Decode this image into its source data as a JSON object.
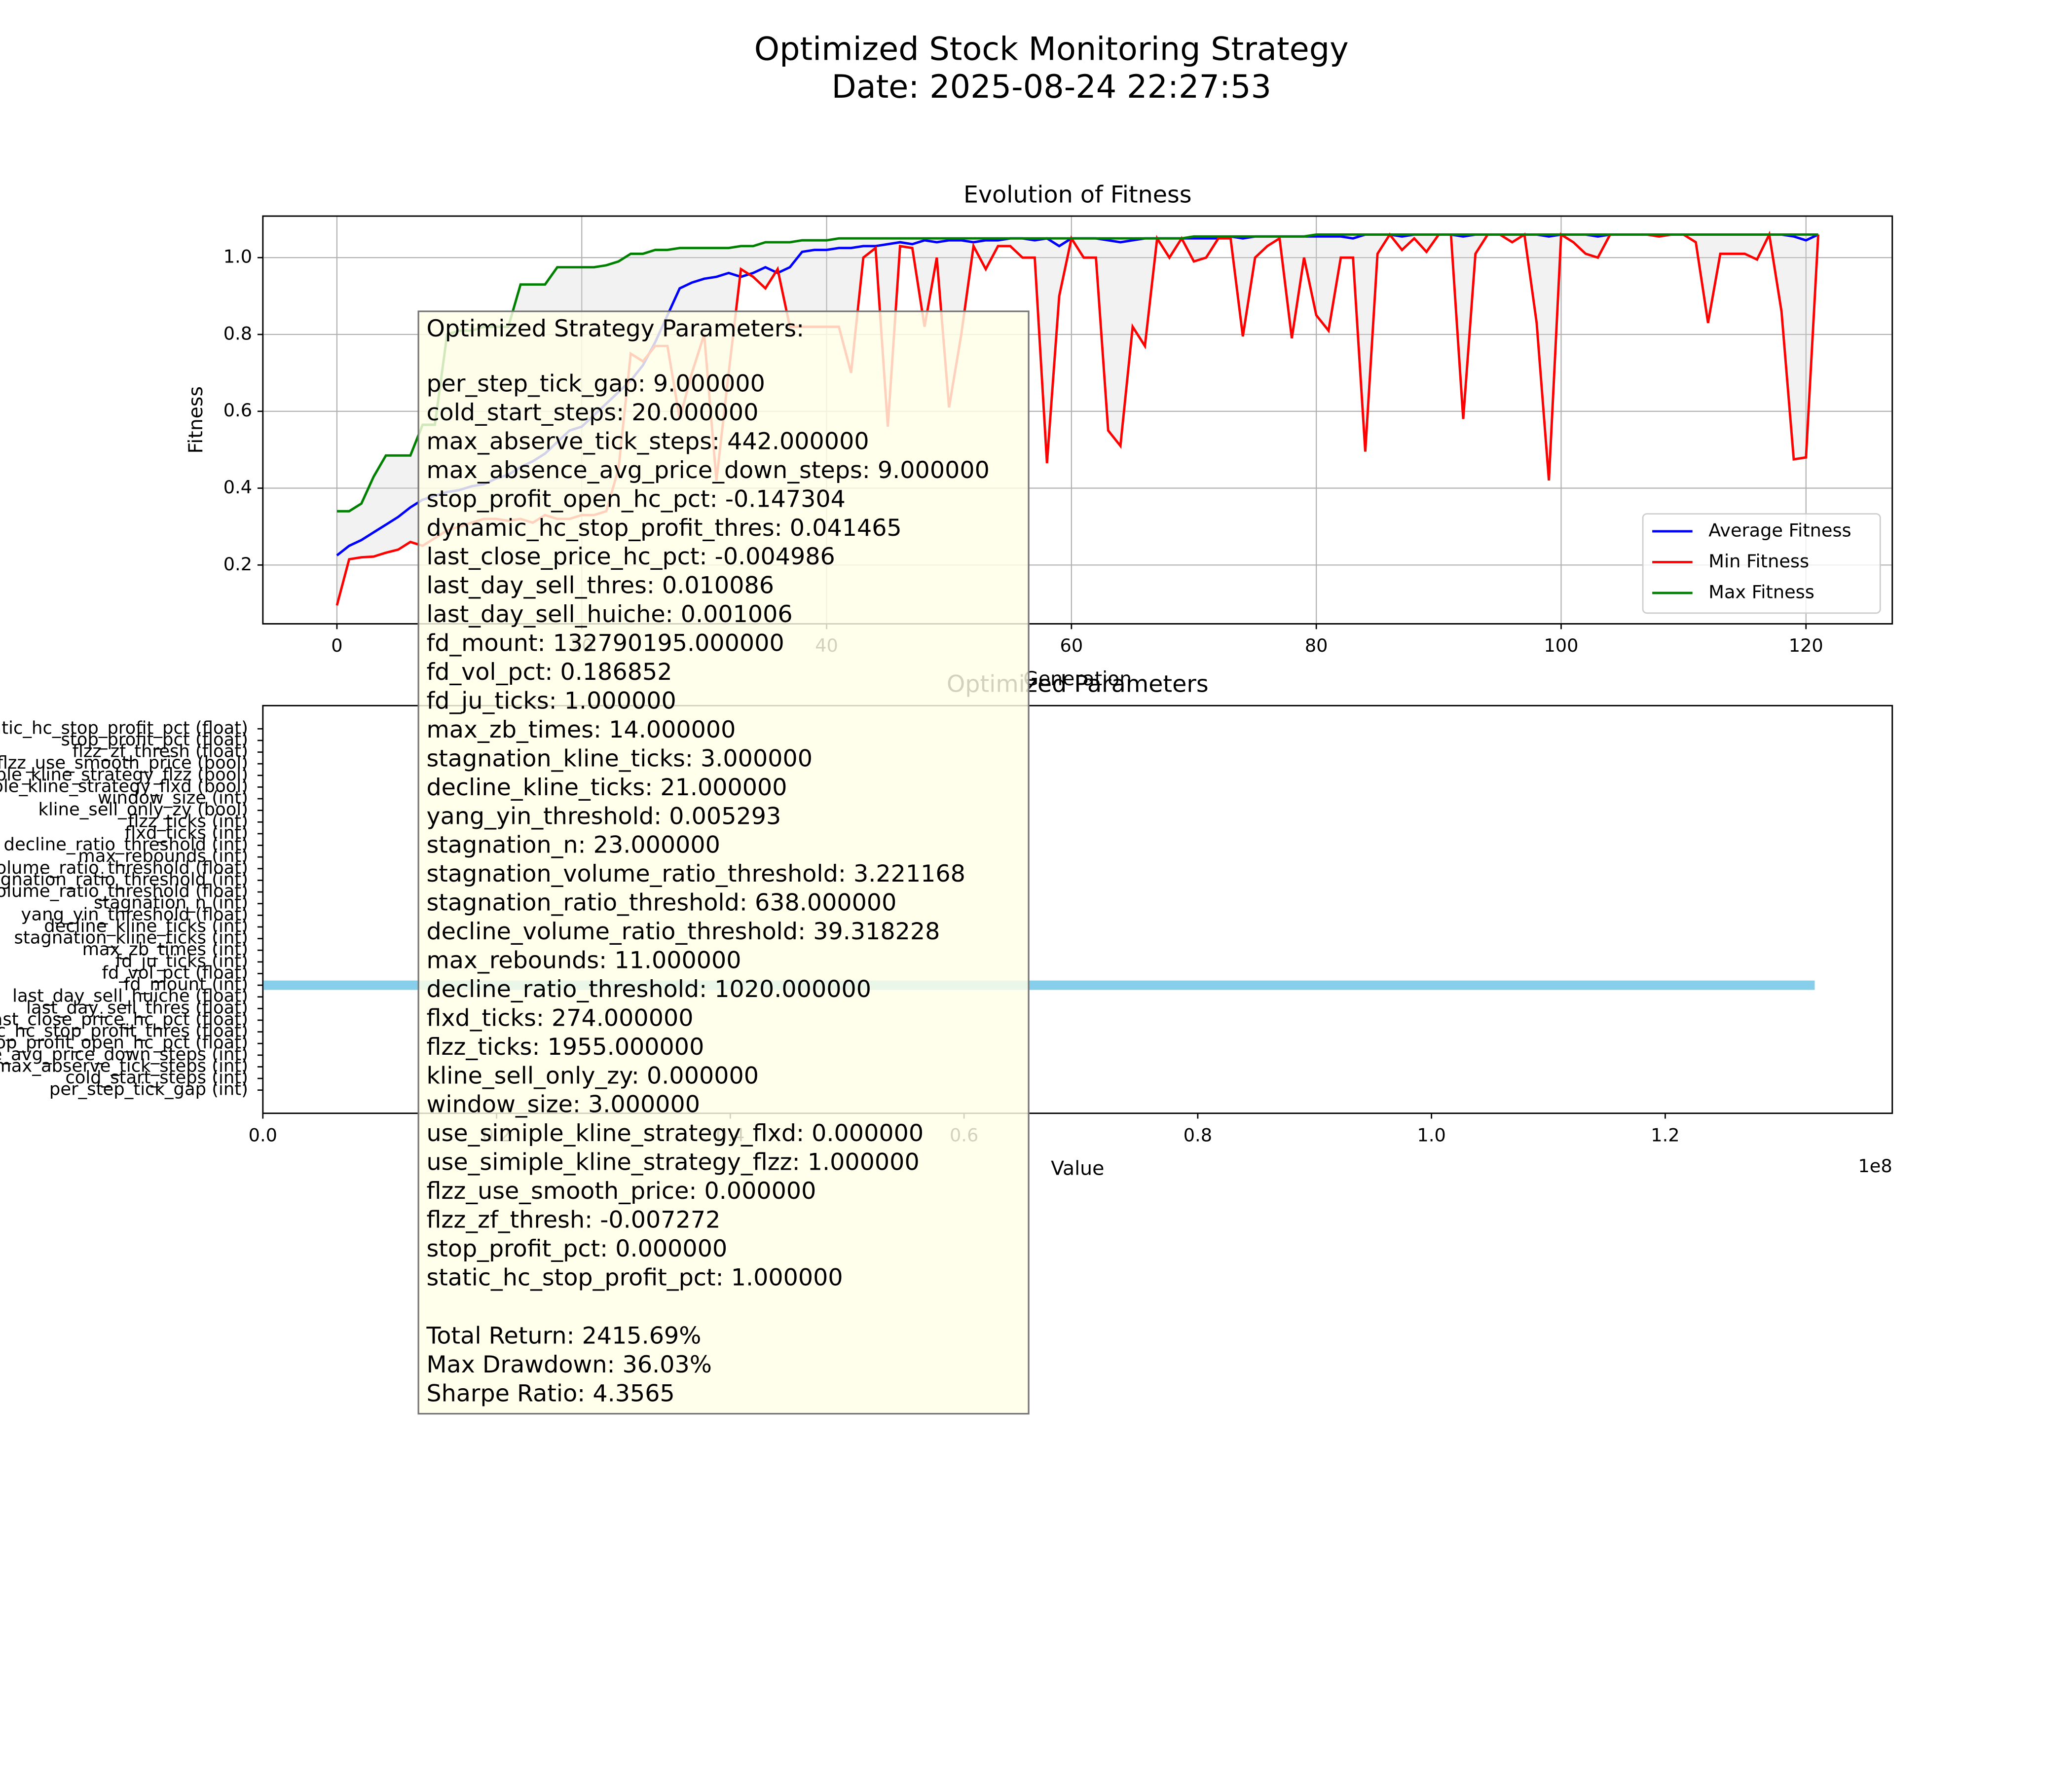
{
  "figure": {
    "title": "Optimized Stock Monitoring Strategy",
    "subtitle": "Date: 2025-08-24 22:27:53"
  },
  "chart_data": [
    {
      "type": "line",
      "title": "Evolution of Fitness",
      "x_label": "Generation",
      "y_label": "Fitness",
      "x": [
        0,
        1,
        2,
        3,
        4,
        5,
        6,
        7,
        8,
        9,
        10,
        11,
        12,
        13,
        14,
        15,
        16,
        17,
        18,
        19,
        20,
        21,
        22,
        23,
        24,
        25,
        26,
        27,
        28,
        29,
        30,
        31,
        32,
        33,
        34,
        35,
        36,
        37,
        38,
        39,
        40,
        41,
        42,
        43,
        44,
        45,
        46,
        47,
        48,
        49,
        50,
        51,
        52,
        53,
        54,
        55,
        56,
        57,
        58,
        59,
        60,
        61,
        62,
        63,
        64,
        65,
        66,
        67,
        68,
        69,
        70,
        71,
        72,
        73,
        74,
        75,
        76,
        77,
        78,
        79,
        80,
        81,
        82,
        83,
        84,
        85,
        86,
        87,
        88,
        89,
        90,
        91,
        92,
        93,
        94,
        95,
        96,
        97,
        98,
        99,
        100,
        101,
        102,
        103,
        104,
        105,
        106,
        107,
        108,
        109,
        110,
        111,
        112,
        113,
        114,
        115,
        116,
        117,
        118,
        119,
        120,
        121
      ],
      "series": [
        {
          "name": "Average Fitness",
          "color": "#0000ff",
          "values": [
            0.225,
            0.25,
            0.265,
            0.285,
            0.305,
            0.325,
            0.35,
            0.37,
            0.38,
            0.39,
            0.395,
            0.405,
            0.41,
            0.425,
            0.435,
            0.455,
            0.47,
            0.49,
            0.52,
            0.55,
            0.56,
            0.59,
            0.62,
            0.65,
            0.68,
            0.72,
            0.78,
            0.85,
            0.92,
            0.935,
            0.945,
            0.95,
            0.96,
            0.95,
            0.96,
            0.975,
            0.96,
            0.975,
            1.015,
            1.02,
            1.02,
            1.025,
            1.025,
            1.03,
            1.03,
            1.035,
            1.04,
            1.035,
            1.045,
            1.04,
            1.045,
            1.045,
            1.04,
            1.045,
            1.045,
            1.05,
            1.05,
            1.045,
            1.05,
            1.03,
            1.05,
            1.05,
            1.05,
            1.045,
            1.04,
            1.045,
            1.05,
            1.05,
            1.05,
            1.05,
            1.05,
            1.05,
            1.05,
            1.055,
            1.05,
            1.055,
            1.055,
            1.055,
            1.055,
            1.055,
            1.055,
            1.055,
            1.055,
            1.05,
            1.06,
            1.06,
            1.06,
            1.055,
            1.06,
            1.06,
            1.06,
            1.06,
            1.055,
            1.06,
            1.06,
            1.06,
            1.06,
            1.06,
            1.06,
            1.055,
            1.06,
            1.06,
            1.06,
            1.055,
            1.06,
            1.06,
            1.06,
            1.06,
            1.06,
            1.06,
            1.06,
            1.06,
            1.06,
            1.06,
            1.06,
            1.06,
            1.06,
            1.06,
            1.06,
            1.055,
            1.045,
            1.06
          ]
        },
        {
          "name": "Min Fitness",
          "color": "#ff0000",
          "values": [
            0.095,
            0.215,
            0.22,
            0.222,
            0.232,
            0.24,
            0.26,
            0.25,
            0.27,
            0.29,
            0.3,
            0.31,
            0.32,
            0.32,
            0.315,
            0.32,
            0.31,
            0.33,
            0.32,
            0.32,
            0.33,
            0.33,
            0.34,
            0.45,
            0.75,
            0.73,
            0.77,
            0.77,
            0.58,
            0.7,
            0.8,
            0.42,
            0.7,
            0.97,
            0.95,
            0.92,
            0.97,
            0.82,
            0.82,
            0.82,
            0.82,
            0.82,
            0.7,
            1.0,
            1.025,
            0.56,
            1.03,
            1.025,
            0.82,
            1.0,
            0.61,
            0.8,
            1.03,
            0.97,
            1.03,
            1.03,
            1.0,
            1.0,
            0.465,
            0.9,
            1.05,
            1.0,
            1.0,
            0.55,
            0.51,
            0.82,
            0.77,
            1.05,
            1.0,
            1.05,
            0.99,
            1.0,
            1.05,
            1.05,
            0.795,
            1.0,
            1.03,
            1.05,
            0.79,
            1.0,
            0.85,
            0.81,
            1.0,
            1.0,
            0.495,
            1.01,
            1.06,
            1.02,
            1.05,
            1.015,
            1.06,
            1.06,
            0.58,
            1.01,
            1.06,
            1.06,
            1.04,
            1.06,
            0.83,
            0.42,
            1.06,
            1.04,
            1.01,
            1.0,
            1.06,
            1.06,
            1.06,
            1.06,
            1.055,
            1.06,
            1.06,
            1.04,
            0.83,
            1.01,
            1.01,
            1.01,
            0.995,
            1.06,
            0.86,
            0.475,
            0.48,
            1.06
          ]
        },
        {
          "name": "Max Fitness",
          "color": "#008000",
          "values": [
            0.34,
            0.34,
            0.36,
            0.43,
            0.485,
            0.485,
            0.485,
            0.565,
            0.565,
            0.8,
            0.81,
            0.81,
            0.82,
            0.82,
            0.82,
            0.93,
            0.93,
            0.93,
            0.975,
            0.975,
            0.975,
            0.975,
            0.98,
            0.99,
            1.01,
            1.01,
            1.02,
            1.02,
            1.025,
            1.025,
            1.025,
            1.025,
            1.025,
            1.03,
            1.03,
            1.04,
            1.04,
            1.04,
            1.045,
            1.045,
            1.045,
            1.05,
            1.05,
            1.05,
            1.05,
            1.05,
            1.05,
            1.05,
            1.05,
            1.05,
            1.05,
            1.05,
            1.05,
            1.05,
            1.05,
            1.05,
            1.05,
            1.05,
            1.05,
            1.05,
            1.05,
            1.05,
            1.05,
            1.05,
            1.05,
            1.05,
            1.05,
            1.05,
            1.05,
            1.05,
            1.055,
            1.055,
            1.055,
            1.055,
            1.055,
            1.055,
            1.055,
            1.055,
            1.055,
            1.055,
            1.06,
            1.06,
            1.06,
            1.06,
            1.06,
            1.06,
            1.06,
            1.06,
            1.06,
            1.06,
            1.06,
            1.06,
            1.06,
            1.06,
            1.06,
            1.06,
            1.06,
            1.06,
            1.06,
            1.06,
            1.06,
            1.06,
            1.06,
            1.06,
            1.06,
            1.06,
            1.06,
            1.06,
            1.06,
            1.06,
            1.06,
            1.06,
            1.06,
            1.06,
            1.06,
            1.06,
            1.06,
            1.06,
            1.06,
            1.06,
            1.06,
            1.06
          ]
        }
      ],
      "fill_between": true,
      "fill_color": "#d3d3d3",
      "xlim": [
        -6.05,
        127.05
      ],
      "xticks": [
        0,
        20,
        40,
        60,
        80,
        100,
        120
      ],
      "ylim": [
        0.047,
        1.108
      ],
      "yticks": [
        {
          "value": 0.2,
          "label": "0.2"
        },
        {
          "value": 0.4,
          "label": "0.4"
        },
        {
          "value": 0.6,
          "label": "0.6"
        },
        {
          "value": 0.8,
          "label": "0.8"
        },
        {
          "value": 1,
          "label": "1.0"
        }
      ],
      "grid": true,
      "legend": "lower right"
    },
    {
      "type": "barh",
      "title": "Optimized Parameters",
      "x_label": "Value",
      "x_offset_label": "1e8",
      "color": "#87ceeb",
      "categories": [
        "per_step_tick_gap (int)",
        "cold_start_steps (int)",
        "max_abserve_tick_steps (int)",
        "max_absence_avg_price_down_steps (int)",
        "stop_profit_open_hc_pct (float)",
        "dynamic_hc_stop_profit_thres (float)",
        "last_close_price_hc_pct (float)",
        "last_day_sell_thres (float)",
        "last_day_sell_huiche (float)",
        "fd_mount (int)",
        "fd_vol_pct (float)",
        "fd_ju_ticks (int)",
        "max_zb_times (int)",
        "stagnation_kline_ticks (int)",
        "decline_kline_ticks (int)",
        "yang_yin_threshold (float)",
        "stagnation_n (int)",
        "stagnation_volume_ratio_threshold (float)",
        "stagnation_ratio_threshold (int)",
        "decline_volume_ratio_threshold (float)",
        "max_rebounds (int)",
        "decline_ratio_threshold (int)",
        "flxd_ticks (int)",
        "flzz_ticks (int)",
        "kline_sell_only_zy (bool)",
        "window_size (int)",
        "use_simiple_kline_strategy_flxd (bool)",
        "use_simiple_kline_strategy_flzz (bool)",
        "flzz_use_smooth_price (bool)",
        "flzz_zf_thresh (float)",
        "stop_profit_pct (float)",
        "static_hc_stop_profit_pct (float)"
      ],
      "values": [
        9,
        20,
        442,
        9,
        -0.147304,
        0.041465,
        -0.004986,
        0.010086,
        0.001006,
        132790195,
        0.186852,
        1,
        14,
        3,
        21,
        0.005293,
        23,
        3.221168,
        638,
        39.318228,
        11,
        1020,
        274,
        1955,
        0,
        3,
        0,
        1,
        0,
        -0.007272,
        0,
        1
      ],
      "xlim": [
        0,
        139430000
      ],
      "xticks": [
        {
          "value": 0,
          "label": "0.0"
        },
        {
          "value": 20000000,
          "label": "0.2"
        },
        {
          "value": 40000000,
          "label": "0.4"
        },
        {
          "value": 60000000,
          "label": "0.6"
        },
        {
          "value": 80000000,
          "label": "0.8"
        },
        {
          "value": 100000000,
          "label": "1.0"
        },
        {
          "value": 120000000,
          "label": "1.2"
        }
      ],
      "grid": false
    }
  ],
  "annotation": {
    "title": "Optimized Strategy Parameters:",
    "lines": [
      "per_step_tick_gap: 9.000000",
      "cold_start_steps: 20.000000",
      "max_abserve_tick_steps: 442.000000",
      "max_absence_avg_price_down_steps: 9.000000",
      "stop_profit_open_hc_pct: -0.147304",
      "dynamic_hc_stop_profit_thres: 0.041465",
      "last_close_price_hc_pct: -0.004986",
      "last_day_sell_thres: 0.010086",
      "last_day_sell_huiche: 0.001006",
      "fd_mount: 132790195.000000",
      "fd_vol_pct: 0.186852",
      "fd_ju_ticks: 1.000000",
      "max_zb_times: 14.000000",
      "stagnation_kline_ticks: 3.000000",
      "decline_kline_ticks: 21.000000",
      "yang_yin_threshold: 0.005293",
      "stagnation_n: 23.000000",
      "stagnation_volume_ratio_threshold: 3.221168",
      "stagnation_ratio_threshold: 638.000000",
      "decline_volume_ratio_threshold: 39.318228",
      "max_rebounds: 11.000000",
      "decline_ratio_threshold: 1020.000000",
      "flxd_ticks: 274.000000",
      "flzz_ticks: 1955.000000",
      "kline_sell_only_zy: 0.000000",
      "window_size: 3.000000",
      "use_simiple_kline_strategy_flxd: 0.000000",
      "use_simiple_kline_strategy_flzz: 1.000000",
      "flzz_use_smooth_price: 0.000000",
      "flzz_zf_thresh: -0.007272",
      "stop_profit_pct: 0.000000",
      "static_hc_stop_profit_pct: 1.000000"
    ],
    "metrics": [
      "Total Return: 2415.69%",
      "Max Drawdown: 36.03%",
      "Sharpe Ratio: 4.3565"
    ]
  }
}
